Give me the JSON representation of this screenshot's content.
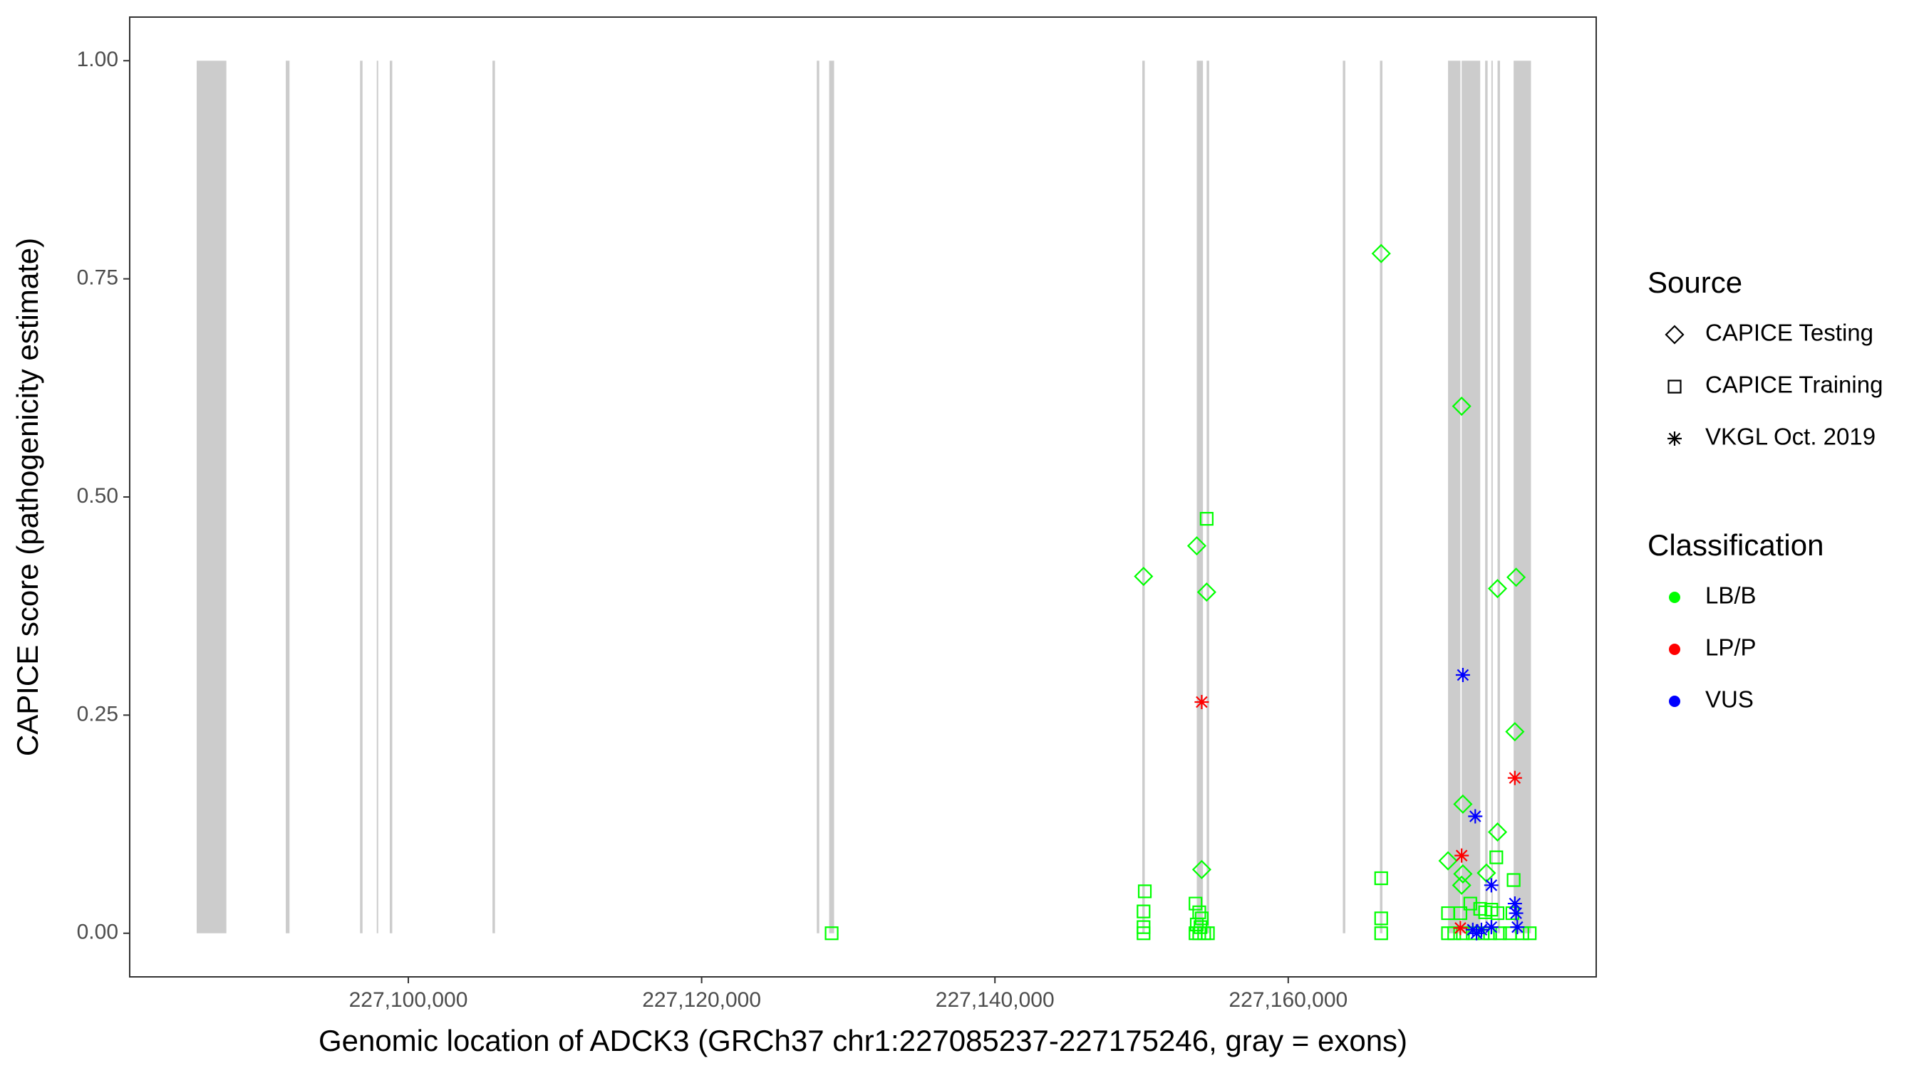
{
  "chart_data": {
    "type": "scatter",
    "xlabel": "Genomic location of ADCK3 (GRCh37 chr1:227085237-227175246, gray = exons)",
    "ylabel": "CAPICE score (pathogenicity estimate)",
    "xlim": [
      227081000,
      227181000
    ],
    "ylim": [
      -0.05,
      1.05
    ],
    "xticks": [
      {
        "value": 227100000,
        "label": "227,100,000"
      },
      {
        "value": 227120000,
        "label": "227,120,000"
      },
      {
        "value": 227140000,
        "label": "227,140,000"
      },
      {
        "value": 227160000,
        "label": "227,160,000"
      }
    ],
    "yticks": [
      {
        "value": 0,
        "label": "0.00"
      },
      {
        "value": 0.25,
        "label": "0.25"
      },
      {
        "value": 0.5,
        "label": "0.50"
      },
      {
        "value": 0.75,
        "label": "0.75"
      },
      {
        "value": 1,
        "label": "1.00"
      }
    ],
    "exon_color": "#cccccc",
    "exons": [
      {
        "start": 227085568,
        "end": 227087593
      },
      {
        "start": 227091644,
        "end": 227091898
      },
      {
        "start": 227096708,
        "end": 227096877
      },
      {
        "start": 227097848,
        "end": 227097932
      },
      {
        "start": 227098734,
        "end": 227098903
      },
      {
        "start": 227105739,
        "end": 227105908
      },
      {
        "start": 227127852,
        "end": 227128021
      },
      {
        "start": 227128696,
        "end": 227129034
      },
      {
        "start": 227150049,
        "end": 227150218
      },
      {
        "start": 227153763,
        "end": 227154185
      },
      {
        "start": 227154438,
        "end": 227154607
      },
      {
        "start": 227163722,
        "end": 227163891
      },
      {
        "start": 227166254,
        "end": 227166423
      },
      {
        "start": 227170896,
        "end": 227171740
      },
      {
        "start": 227171824,
        "end": 227173090
      },
      {
        "start": 227173428,
        "end": 227173597
      },
      {
        "start": 227173850,
        "end": 227173934
      },
      {
        "start": 227174272,
        "end": 227174441
      },
      {
        "start": 227175369,
        "end": 227176551
      }
    ],
    "legends": [
      {
        "title": "Source",
        "entries": [
          {
            "label": "CAPICE Testing",
            "shape": "diamond"
          },
          {
            "label": "CAPICE Training",
            "shape": "square"
          },
          {
            "label": "VKGL Oct. 2019",
            "shape": "asterisk"
          }
        ]
      },
      {
        "title": "Classification",
        "entries": [
          {
            "label": "LB/B",
            "color": "#00ff00"
          },
          {
            "label": "LP/P",
            "color": "#ff0000"
          },
          {
            "label": "VUS",
            "color": "#0000ff"
          }
        ]
      }
    ],
    "series": [
      {
        "shape": "diamond",
        "color": "#00ff00",
        "x": [
          227150134,
          227153763,
          227154438,
          227154100,
          227166338,
          227171824,
          227171909,
          227170896,
          227171909,
          227171824,
          227173512,
          227174272,
          227174272,
          227175538,
          227175454
        ],
        "values": [
          0.409,
          0.444,
          0.391,
          0.073,
          0.779,
          0.604,
          0.148,
          0.083,
          0.068,
          0.055,
          0.069,
          0.395,
          0.116,
          0.408,
          0.231
        ]
      },
      {
        "shape": "square",
        "color": "#00ff00",
        "x": [
          227128865,
          227150218,
          227150134,
          227150134,
          227150134,
          227154438,
          227153678,
          227153932,
          227154100,
          227153763,
          227154016,
          227153678,
          227153932,
          227154269,
          227154522,
          227166338,
          227166338,
          227166338,
          227170896,
          227170896,
          227171740,
          227172415,
          227173090,
          227173428,
          227173850,
          227174272,
          227174188,
          227175369,
          227175285,
          227171318,
          227171909,
          227172584,
          227173259,
          227173766,
          227174441,
          227175116,
          227175960,
          227176466
        ],
        "values": [
          0,
          0.048,
          0.025,
          0.007,
          0,
          0.475,
          0.034,
          0.024,
          0.017,
          0.01,
          0.007,
          0,
          0,
          0,
          0,
          0.063,
          0.017,
          0,
          0.023,
          0,
          0.023,
          0.034,
          0.028,
          0.024,
          0.027,
          0.023,
          0.087,
          0.061,
          0.023,
          0,
          0,
          0,
          0,
          0,
          0,
          0,
          0,
          0
        ]
      },
      {
        "shape": "asterisk",
        "color": "#ff0000",
        "x": [
          227154100,
          227171824,
          227171740,
          227175454
        ],
        "values": [
          0.265,
          0.089,
          0.006,
          0.178
        ]
      },
      {
        "shape": "asterisk",
        "color": "#0000ff",
        "x": [
          227171909,
          227172753,
          227173850,
          227175454,
          227175538,
          227175622,
          227172584,
          227173175,
          227173850,
          227172837
        ],
        "values": [
          0.296,
          0.134,
          0.055,
          0.034,
          0.023,
          0.007,
          0.004,
          0.004,
          0.007,
          0
        ]
      }
    ]
  }
}
